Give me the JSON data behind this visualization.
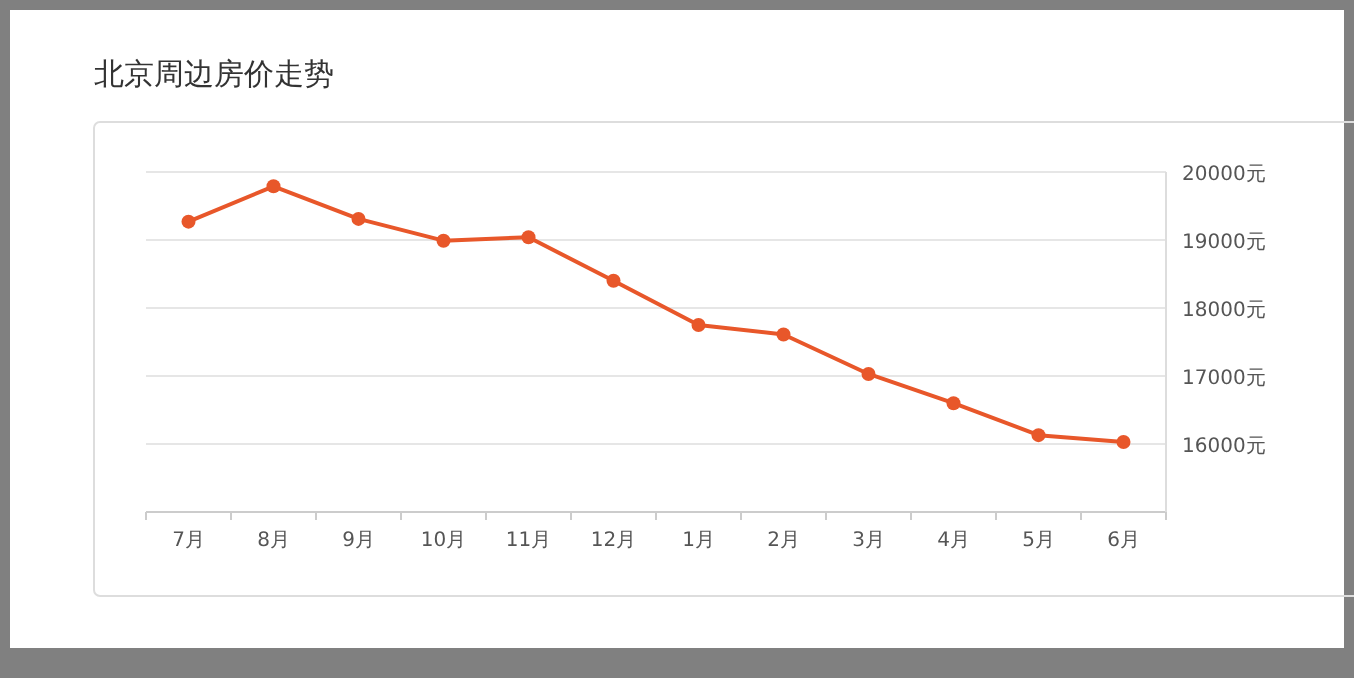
{
  "chart_data": {
    "type": "line",
    "title": "北京周边房价走势",
    "categories": [
      "7月",
      "8月",
      "9月",
      "10月",
      "11月",
      "12月",
      "1月",
      "2月",
      "3月",
      "4月",
      "5月",
      "6月"
    ],
    "series": [
      {
        "color": "#e8572a",
        "values": [
          19270,
          19790,
          19310,
          18990,
          19040,
          18400,
          17750,
          17610,
          17030,
          16600,
          16130,
          16030
        ]
      }
    ],
    "ylim": [
      15000,
      20000
    ],
    "yticks": [
      {
        "value": 15000,
        "label": null
      },
      {
        "value": 16000,
        "label": "16000元"
      },
      {
        "value": 17000,
        "label": "17000元"
      },
      {
        "value": 18000,
        "label": "18000元"
      },
      {
        "value": 19000,
        "label": "19000元"
      },
      {
        "value": 20000,
        "label": "20000元"
      }
    ],
    "grid": "y",
    "marker": "circle",
    "line_style": "solid"
  }
}
